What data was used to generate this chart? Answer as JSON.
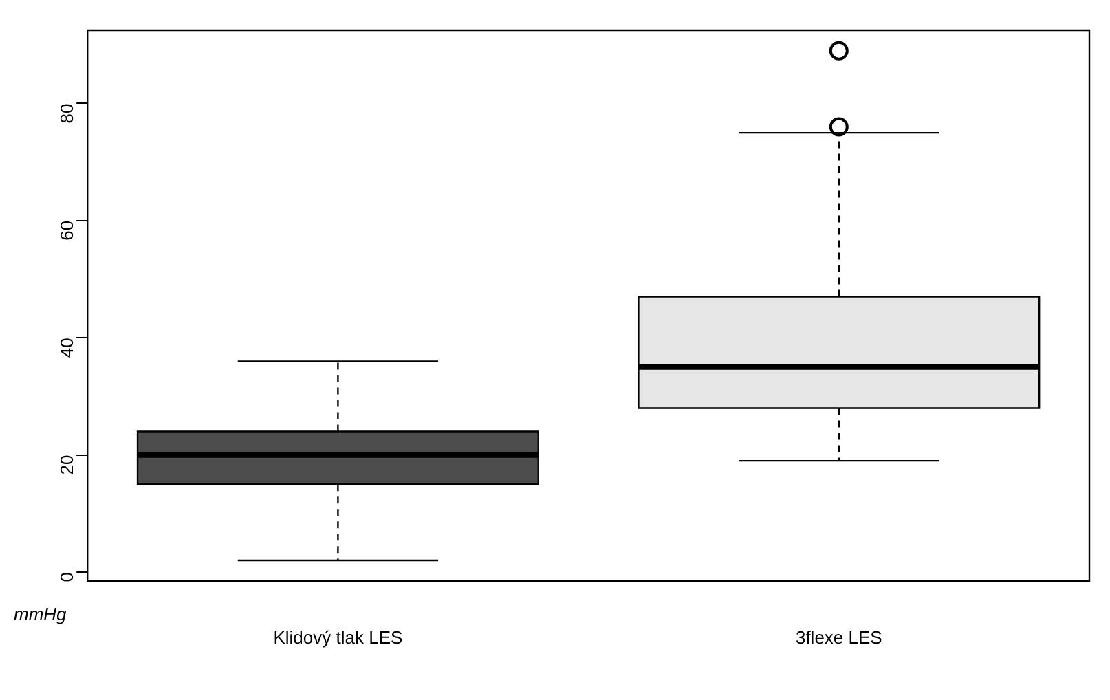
{
  "chart_data": {
    "type": "box",
    "categories": [
      "Klidový tlak LES",
      "3flexe LES"
    ],
    "colors": [
      "#4d4d4d",
      "#e6e6e6"
    ],
    "boxes": [
      {
        "low": 2,
        "q1": 15,
        "median": 20,
        "q3": 24,
        "high": 36
      },
      {
        "low": 19,
        "q1": 28,
        "median": 35,
        "q3": 47,
        "high": 75,
        "outliers": [
          76,
          89
        ]
      }
    ],
    "ylim": [
      -1.5,
      92.5
    ],
    "yticks": [
      0,
      20,
      40,
      60,
      80
    ],
    "grid": false,
    "legend": false,
    "annotations": [
      "mmHg"
    ]
  }
}
